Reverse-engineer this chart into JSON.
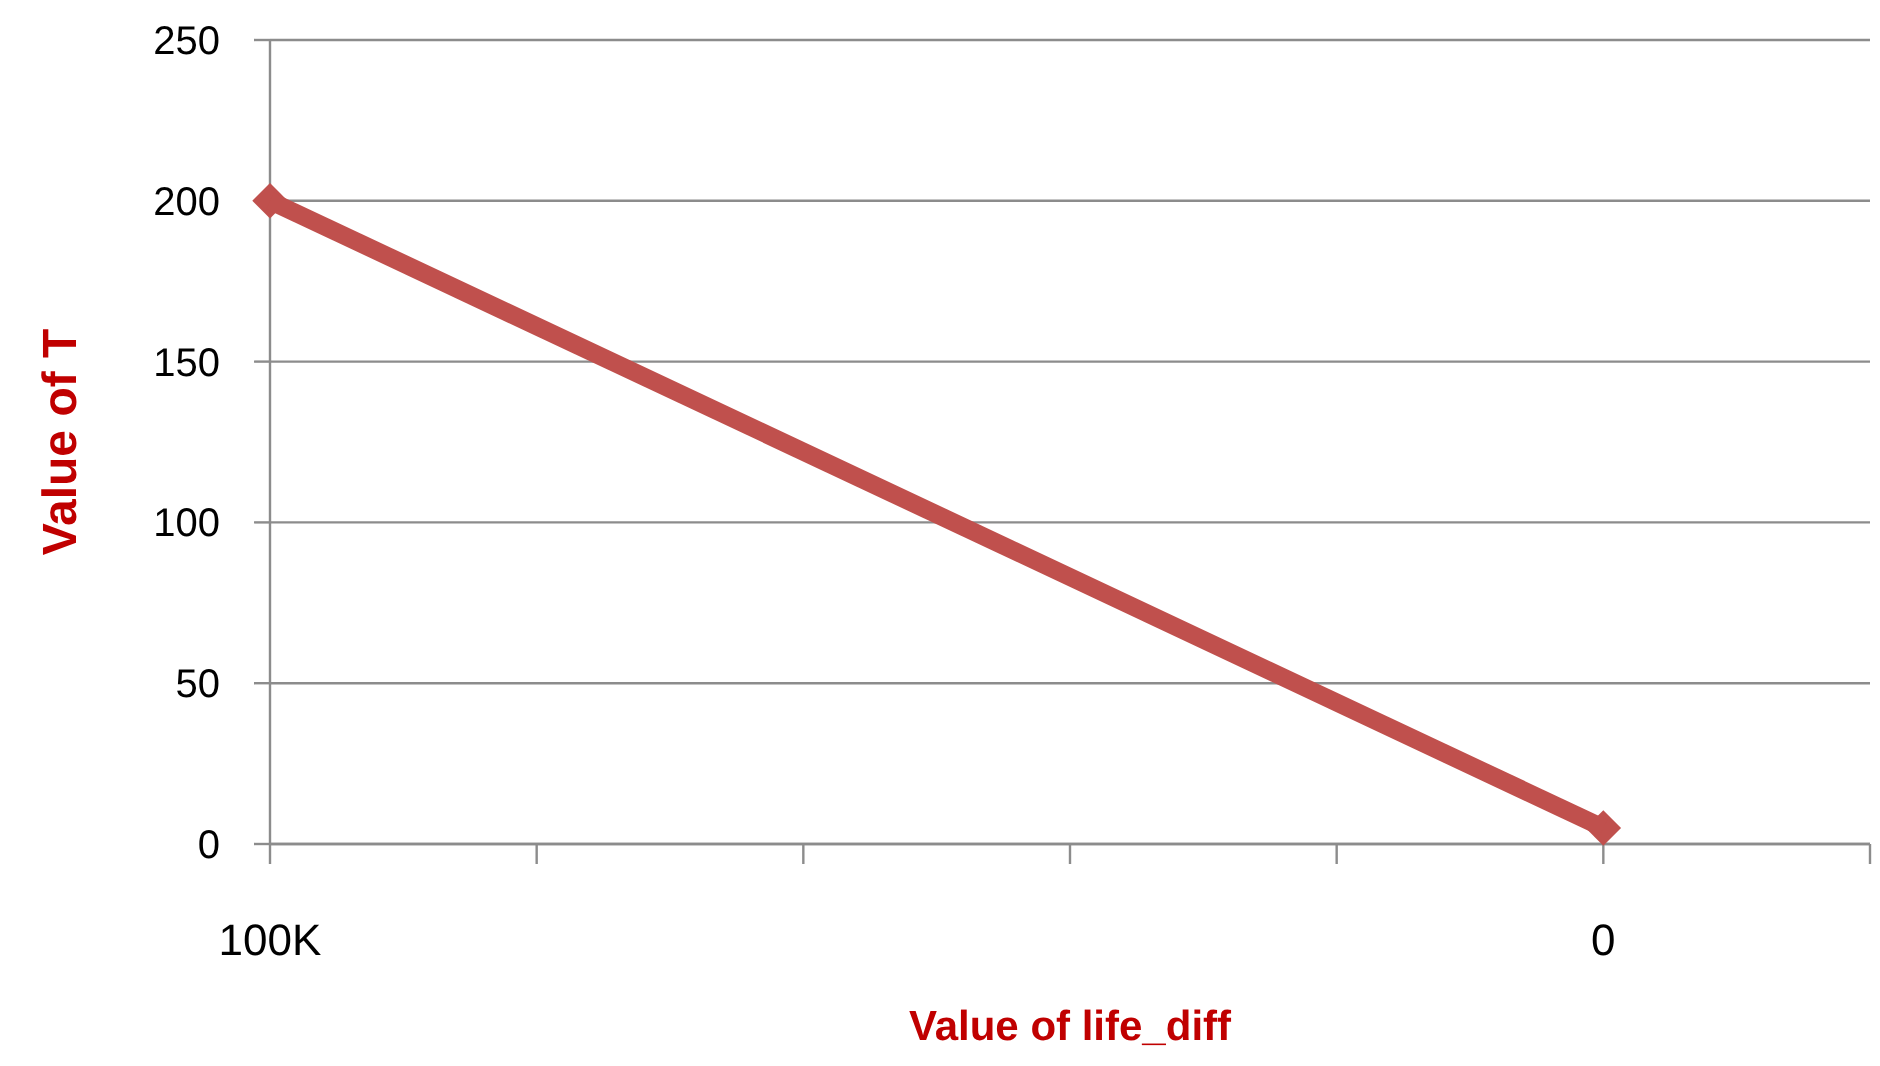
{
  "chart_data": {
    "type": "line",
    "xlabel": "Value of life_diff",
    "ylabel": "Value of T",
    "x": [
      100000,
      0
    ],
    "series": [
      {
        "color": "#c0504d",
        "values": [
          200,
          5
        ]
      }
    ],
    "xlim": [
      100000,
      -20000
    ],
    "xticks": [
      {
        "value": 100000,
        "label": "100K"
      },
      {
        "value": 80000,
        "label": null
      },
      {
        "value": 60000,
        "label": null
      },
      {
        "value": 40000,
        "label": null
      },
      {
        "value": 20000,
        "label": null
      },
      {
        "value": 0,
        "label": "0"
      },
      {
        "value": -20000,
        "label": null
      }
    ],
    "ylim": [
      0,
      250
    ],
    "yticks": [
      0,
      50,
      100,
      150,
      200,
      250
    ],
    "grid": "y",
    "marker": "diamond",
    "line_style": "solid"
  }
}
